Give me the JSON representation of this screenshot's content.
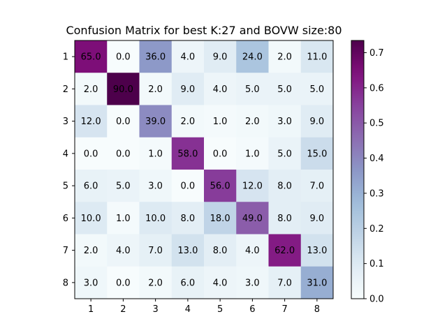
{
  "chart_data": {
    "type": "heatmap",
    "title": "Confusion Matrix for best K:27 and BOVW size:80",
    "xlabel": "",
    "ylabel": "",
    "x_categories": [
      "1",
      "2",
      "3",
      "4",
      "5",
      "6",
      "7",
      "8"
    ],
    "y_categories": [
      "1",
      "2",
      "3",
      "4",
      "5",
      "6",
      "7",
      "8"
    ],
    "values": [
      [
        65.0,
        0.0,
        36.0,
        4.0,
        9.0,
        24.0,
        2.0,
        11.0
      ],
      [
        2.0,
        90.0,
        2.0,
        9.0,
        4.0,
        5.0,
        5.0,
        5.0
      ],
      [
        12.0,
        0.0,
        39.0,
        2.0,
        1.0,
        2.0,
        3.0,
        9.0
      ],
      [
        0.0,
        0.0,
        1.0,
        58.0,
        0.0,
        1.0,
        5.0,
        15.0
      ],
      [
        6.0,
        5.0,
        3.0,
        0.0,
        56.0,
        12.0,
        8.0,
        7.0
      ],
      [
        10.0,
        1.0,
        10.0,
        8.0,
        18.0,
        49.0,
        8.0,
        9.0
      ],
      [
        2.0,
        4.0,
        7.0,
        13.0,
        8.0,
        4.0,
        62.0,
        13.0
      ],
      [
        3.0,
        0.0,
        2.0,
        6.0,
        4.0,
        3.0,
        7.0,
        31.0
      ]
    ],
    "colormap": "BuPu",
    "colorbar": {
      "range": [
        0.0,
        0.7347
      ],
      "ticks": [
        "0.0",
        "0.1",
        "0.2",
        "0.3",
        "0.4",
        "0.5",
        "0.6",
        "0.7"
      ]
    },
    "grid": false
  }
}
